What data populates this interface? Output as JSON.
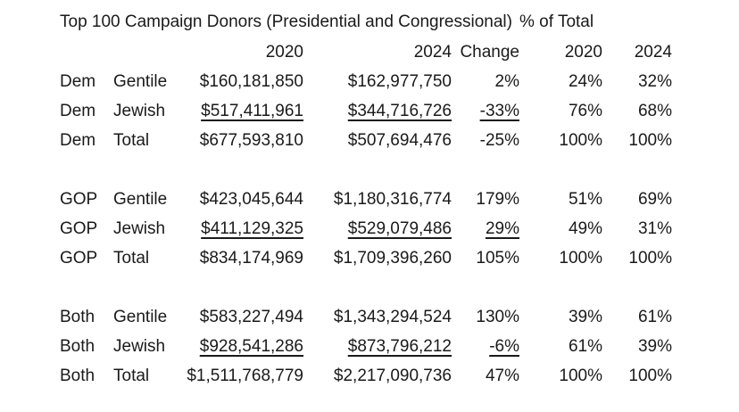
{
  "chart_data": {
    "type": "table",
    "title": "Top 100 Campaign Donors (Presidential and Congressional)",
    "group_header": "% of Total",
    "col_labels": {
      "amt_2020": "2020",
      "amt_2024": "2024",
      "change": "Change",
      "pct_2020": "2020",
      "pct_2024": "2024"
    },
    "rows": [
      {
        "party": "Dem",
        "group": "Gentile",
        "amt_2020": "$160,181,850",
        "amt_2024": "$162,977,750",
        "change": "2%",
        "pct_2020": "24%",
        "pct_2024": "32%",
        "underlined": false
      },
      {
        "party": "Dem",
        "group": "Jewish",
        "amt_2020": "$517,411,961",
        "amt_2024": "$344,716,726",
        "change": "-33%",
        "pct_2020": "76%",
        "pct_2024": "68%",
        "underlined": true
      },
      {
        "party": "Dem",
        "group": "Total",
        "amt_2020": "$677,593,810",
        "amt_2024": "$507,694,476",
        "change": "-25%",
        "pct_2020": "100%",
        "pct_2024": "100%",
        "underlined": false
      },
      {
        "party": "GOP",
        "group": "Gentile",
        "amt_2020": "$423,045,644",
        "amt_2024": "$1,180,316,774",
        "change": "179%",
        "pct_2020": "51%",
        "pct_2024": "69%",
        "underlined": false
      },
      {
        "party": "GOP",
        "group": "Jewish",
        "amt_2020": "$411,129,325",
        "amt_2024": "$529,079,486",
        "change": "29%",
        "pct_2020": "49%",
        "pct_2024": "31%",
        "underlined": true
      },
      {
        "party": "GOP",
        "group": "Total",
        "amt_2020": "$834,174,969",
        "amt_2024": "$1,709,396,260",
        "change": "105%",
        "pct_2020": "100%",
        "pct_2024": "100%",
        "underlined": false
      },
      {
        "party": "Both",
        "group": "Gentile",
        "amt_2020": "$583,227,494",
        "amt_2024": "$1,343,294,524",
        "change": "130%",
        "pct_2020": "39%",
        "pct_2024": "61%",
        "underlined": false
      },
      {
        "party": "Both",
        "group": "Jewish",
        "amt_2020": "$928,541,286",
        "amt_2024": "$873,796,212",
        "change": "-6%",
        "pct_2020": "61%",
        "pct_2024": "39%",
        "underlined": true
      },
      {
        "party": "Both",
        "group": "Total",
        "amt_2020": "$1,511,768,779",
        "amt_2024": "$2,217,090,736",
        "change": "47%",
        "pct_2020": "100%",
        "pct_2024": "100%",
        "underlined": false
      }
    ],
    "layout": {
      "sections": [
        "Dem",
        "GOP",
        "Both"
      ],
      "underline_note": "Jewish-row dollar amounts and change values are underlined"
    },
    "colors": {
      "text": "#1a1a1a",
      "background": "#ffffff"
    }
  }
}
